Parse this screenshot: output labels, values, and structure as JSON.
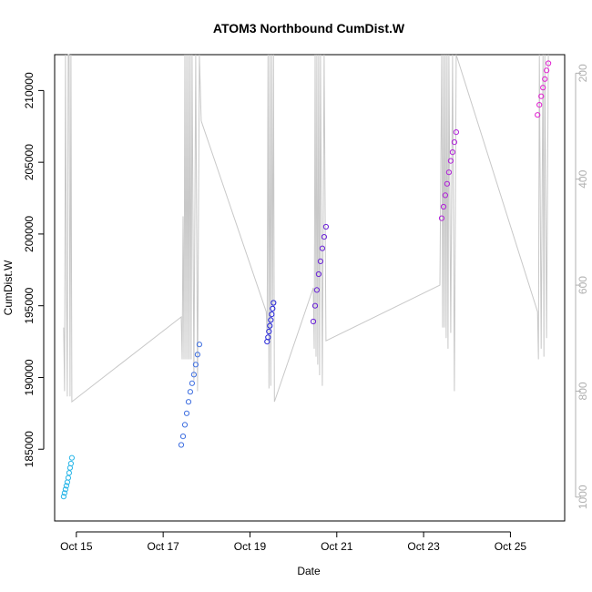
{
  "chart_data": {
    "type": "scatter",
    "title": "ATOM3 Northbound CumDist.W",
    "xlabel": "Date",
    "ylabel": "CumDist.W",
    "x_unit": "date",
    "xlim": [
      "2023-10-14 12:00",
      "2023-10-26 06:00"
    ],
    "ylim": [
      180000,
      212500
    ],
    "y2lim_reversed": [
      1045,
      165
    ],
    "x_ticks": [
      {
        "at": "2023-10-15 00:00",
        "label": "Oct 15"
      },
      {
        "at": "2023-10-17 00:00",
        "label": "Oct 17"
      },
      {
        "at": "2023-10-19 00:00",
        "label": "Oct 19"
      },
      {
        "at": "2023-10-21 00:00",
        "label": "Oct 21"
      },
      {
        "at": "2023-10-23 00:00",
        "label": "Oct 23"
      },
      {
        "at": "2023-10-25 00:00",
        "label": "Oct 25"
      }
    ],
    "y_ticks": [
      185000,
      190000,
      195000,
      200000,
      205000,
      210000
    ],
    "y_tick_labels": [
      "185000",
      "190000",
      "195000",
      "200000",
      "205000",
      "210000"
    ],
    "y2_ticks": [
      200,
      400,
      600,
      800,
      1000
    ],
    "y2_tick_labels": [
      "200",
      "400",
      "600",
      "800",
      "1000"
    ],
    "grid": false,
    "series": [
      {
        "kind": "points",
        "color": "#29b6e8",
        "x": [
          "2023-10-14 17:00",
          "2023-10-14 17:30",
          "2023-10-14 18:00",
          "2023-10-14 18:30",
          "2023-10-14 19:00",
          "2023-10-14 19:30",
          "2023-10-14 20:00",
          "2023-10-14 20:30",
          "2023-10-14 21:00",
          "2023-10-14 21:30"
        ],
        "y": [
          181700,
          181950,
          182200,
          182450,
          182700,
          183000,
          183350,
          183700,
          184000,
          184400
        ]
      },
      {
        "kind": "points",
        "color": "#3f6fe0",
        "x": [
          "2023-10-17 10:00",
          "2023-10-17 11:00",
          "2023-10-17 12:00",
          "2023-10-17 13:00",
          "2023-10-17 14:00",
          "2023-10-17 15:00",
          "2023-10-17 16:00",
          "2023-10-17 17:00",
          "2023-10-17 18:00",
          "2023-10-17 19:00",
          "2023-10-17 20:00"
        ],
        "y": [
          185300,
          185900,
          186700,
          187500,
          188300,
          189000,
          189600,
          190200,
          190900,
          191600,
          192300
        ]
      },
      {
        "kind": "points",
        "color": "#2323d8",
        "x": [
          "2023-10-19 09:30",
          "2023-10-19 10:00",
          "2023-10-19 10:30",
          "2023-10-19 11:00",
          "2023-10-19 11:30",
          "2023-10-19 12:00",
          "2023-10-19 12:30",
          "2023-10-19 13:00"
        ],
        "y": [
          192500,
          192800,
          193200,
          193600,
          194000,
          194400,
          194800,
          195200
        ]
      },
      {
        "kind": "points",
        "color": "#6a22d8",
        "x": [
          "2023-10-20 11:00",
          "2023-10-20 12:00",
          "2023-10-20 13:00",
          "2023-10-20 14:00",
          "2023-10-20 15:00",
          "2023-10-20 16:00",
          "2023-10-20 17:00",
          "2023-10-20 18:00"
        ],
        "y": [
          193900,
          195000,
          196100,
          197200,
          198100,
          199000,
          199800,
          200500
        ]
      },
      {
        "kind": "points",
        "color": "#b021d8",
        "x": [
          "2023-10-23 10:00",
          "2023-10-23 11:00",
          "2023-10-23 12:00",
          "2023-10-23 13:00",
          "2023-10-23 14:00",
          "2023-10-23 15:00",
          "2023-10-23 16:00",
          "2023-10-23 17:00",
          "2023-10-23 18:00"
        ],
        "y": [
          201100,
          201900,
          202700,
          203500,
          204300,
          205100,
          205700,
          206400,
          207100
        ]
      },
      {
        "kind": "points",
        "color": "#e020d0",
        "x": [
          "2023-10-25 15:00",
          "2023-10-25 16:00",
          "2023-10-25 17:00",
          "2023-10-25 18:00",
          "2023-10-25 19:00",
          "2023-10-25 20:00",
          "2023-10-25 21:00"
        ],
        "y": [
          208300,
          209000,
          209600,
          210200,
          210800,
          211400,
          211900
        ]
      },
      {
        "kind": "line",
        "axis": "right",
        "color": "#c8c8c8",
        "x": [
          "2023-10-14 17:00",
          "2023-10-14 17:30",
          "2023-10-14 18:00",
          "2023-10-14 18:30",
          "2023-10-14 19:00",
          "2023-10-14 19:30",
          "2023-10-14 20:00",
          "2023-10-14 20:30",
          "2023-10-14 21:00",
          "2023-10-14 21:30",
          "2023-10-17 10:00",
          "2023-10-17 10:30",
          "2023-10-17 11:00",
          "2023-10-17 11:30",
          "2023-10-17 12:00",
          "2023-10-17 12:30",
          "2023-10-17 13:00",
          "2023-10-17 13:30",
          "2023-10-17 14:00",
          "2023-10-17 14:30",
          "2023-10-17 15:00",
          "2023-10-17 15:30",
          "2023-10-17 16:00",
          "2023-10-17 17:00",
          "2023-10-17 18:00",
          "2023-10-17 19:00",
          "2023-10-17 20:00",
          "2023-10-17 21:00",
          "2023-10-19 09:00",
          "2023-10-19 09:30",
          "2023-10-19 10:00",
          "2023-10-19 10:30",
          "2023-10-19 11:00",
          "2023-10-19 11:30",
          "2023-10-19 12:00",
          "2023-10-19 12:30",
          "2023-10-19 13:00",
          "2023-10-19 13:30",
          "2023-10-20 11:00",
          "2023-10-20 11:30",
          "2023-10-20 12:00",
          "2023-10-20 12:30",
          "2023-10-20 13:00",
          "2023-10-20 13:30",
          "2023-10-20 14:00",
          "2023-10-20 14:30",
          "2023-10-20 15:00",
          "2023-10-20 16:00",
          "2023-10-20 17:00",
          "2023-10-20 18:00",
          "2023-10-23 09:00",
          "2023-10-23 10:00",
          "2023-10-23 10:30",
          "2023-10-23 11:00",
          "2023-10-23 11:30",
          "2023-10-23 12:00",
          "2023-10-23 12:30",
          "2023-10-23 13:00",
          "2023-10-23 13:30",
          "2023-10-23 14:00",
          "2023-10-23 15:00",
          "2023-10-23 16:00",
          "2023-10-23 17:00",
          "2023-10-23 18:00",
          "2023-10-25 15:00",
          "2023-10-25 15:30",
          "2023-10-25 16:00",
          "2023-10-25 17:00",
          "2023-10-25 18:00",
          "2023-10-25 18:30",
          "2023-10-25 19:00",
          "2023-10-25 20:00",
          "2023-10-25 21:00"
        ],
        "y": [
          680,
          800,
          165,
          580,
          810,
          165,
          165,
          810,
          165,
          820,
          660,
          740,
          470,
          740,
          165,
          740,
          165,
          740,
          165,
          740,
          165,
          740,
          165,
          780,
          165,
          800,
          165,
          290,
          650,
          690,
          165,
          795,
          165,
          790,
          165,
          640,
          165,
          820,
          605,
          720,
          165,
          735,
          165,
          750,
          165,
          770,
          165,
          790,
          165,
          705,
          600,
          165,
          680,
          165,
          680,
          165,
          700,
          165,
          720,
          165,
          690,
          165,
          800,
          165,
          650,
          740,
          165,
          720,
          165,
          735,
          165,
          700,
          165
        ]
      }
    ]
  }
}
